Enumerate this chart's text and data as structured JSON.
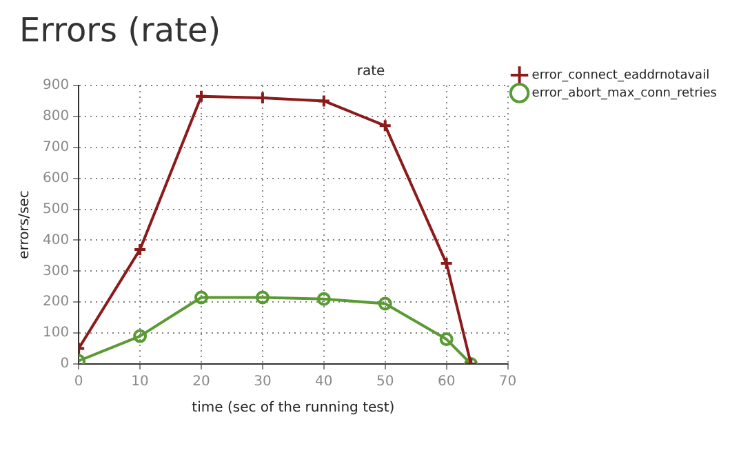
{
  "chart_data": {
    "type": "line",
    "title": "Errors (rate)",
    "subtitle": "rate",
    "xlabel": "time (sec of the running test)",
    "ylabel": "errors/sec",
    "x": [
      0,
      10,
      20,
      30,
      40,
      50,
      60,
      64
    ],
    "series": [
      {
        "name": "error_connect_eaddrnotavail",
        "color": "#8b1a1a",
        "marker": "cross",
        "values": [
          50,
          370,
          865,
          860,
          850,
          770,
          325,
          0
        ]
      },
      {
        "name": "error_abort_max_conn_retries",
        "color": "#5a9a32",
        "marker": "circle",
        "values": [
          10,
          90,
          215,
          215,
          210,
          195,
          80,
          0
        ]
      }
    ],
    "xlim": [
      0,
      70
    ],
    "xticks": [
      0,
      10,
      20,
      30,
      40,
      50,
      60,
      70
    ],
    "ylim": [
      0,
      900
    ],
    "yticks": [
      0,
      100,
      200,
      300,
      400,
      500,
      600,
      700,
      800,
      900
    ],
    "grid": true,
    "legend": "top right",
    "line_style": "solid"
  }
}
